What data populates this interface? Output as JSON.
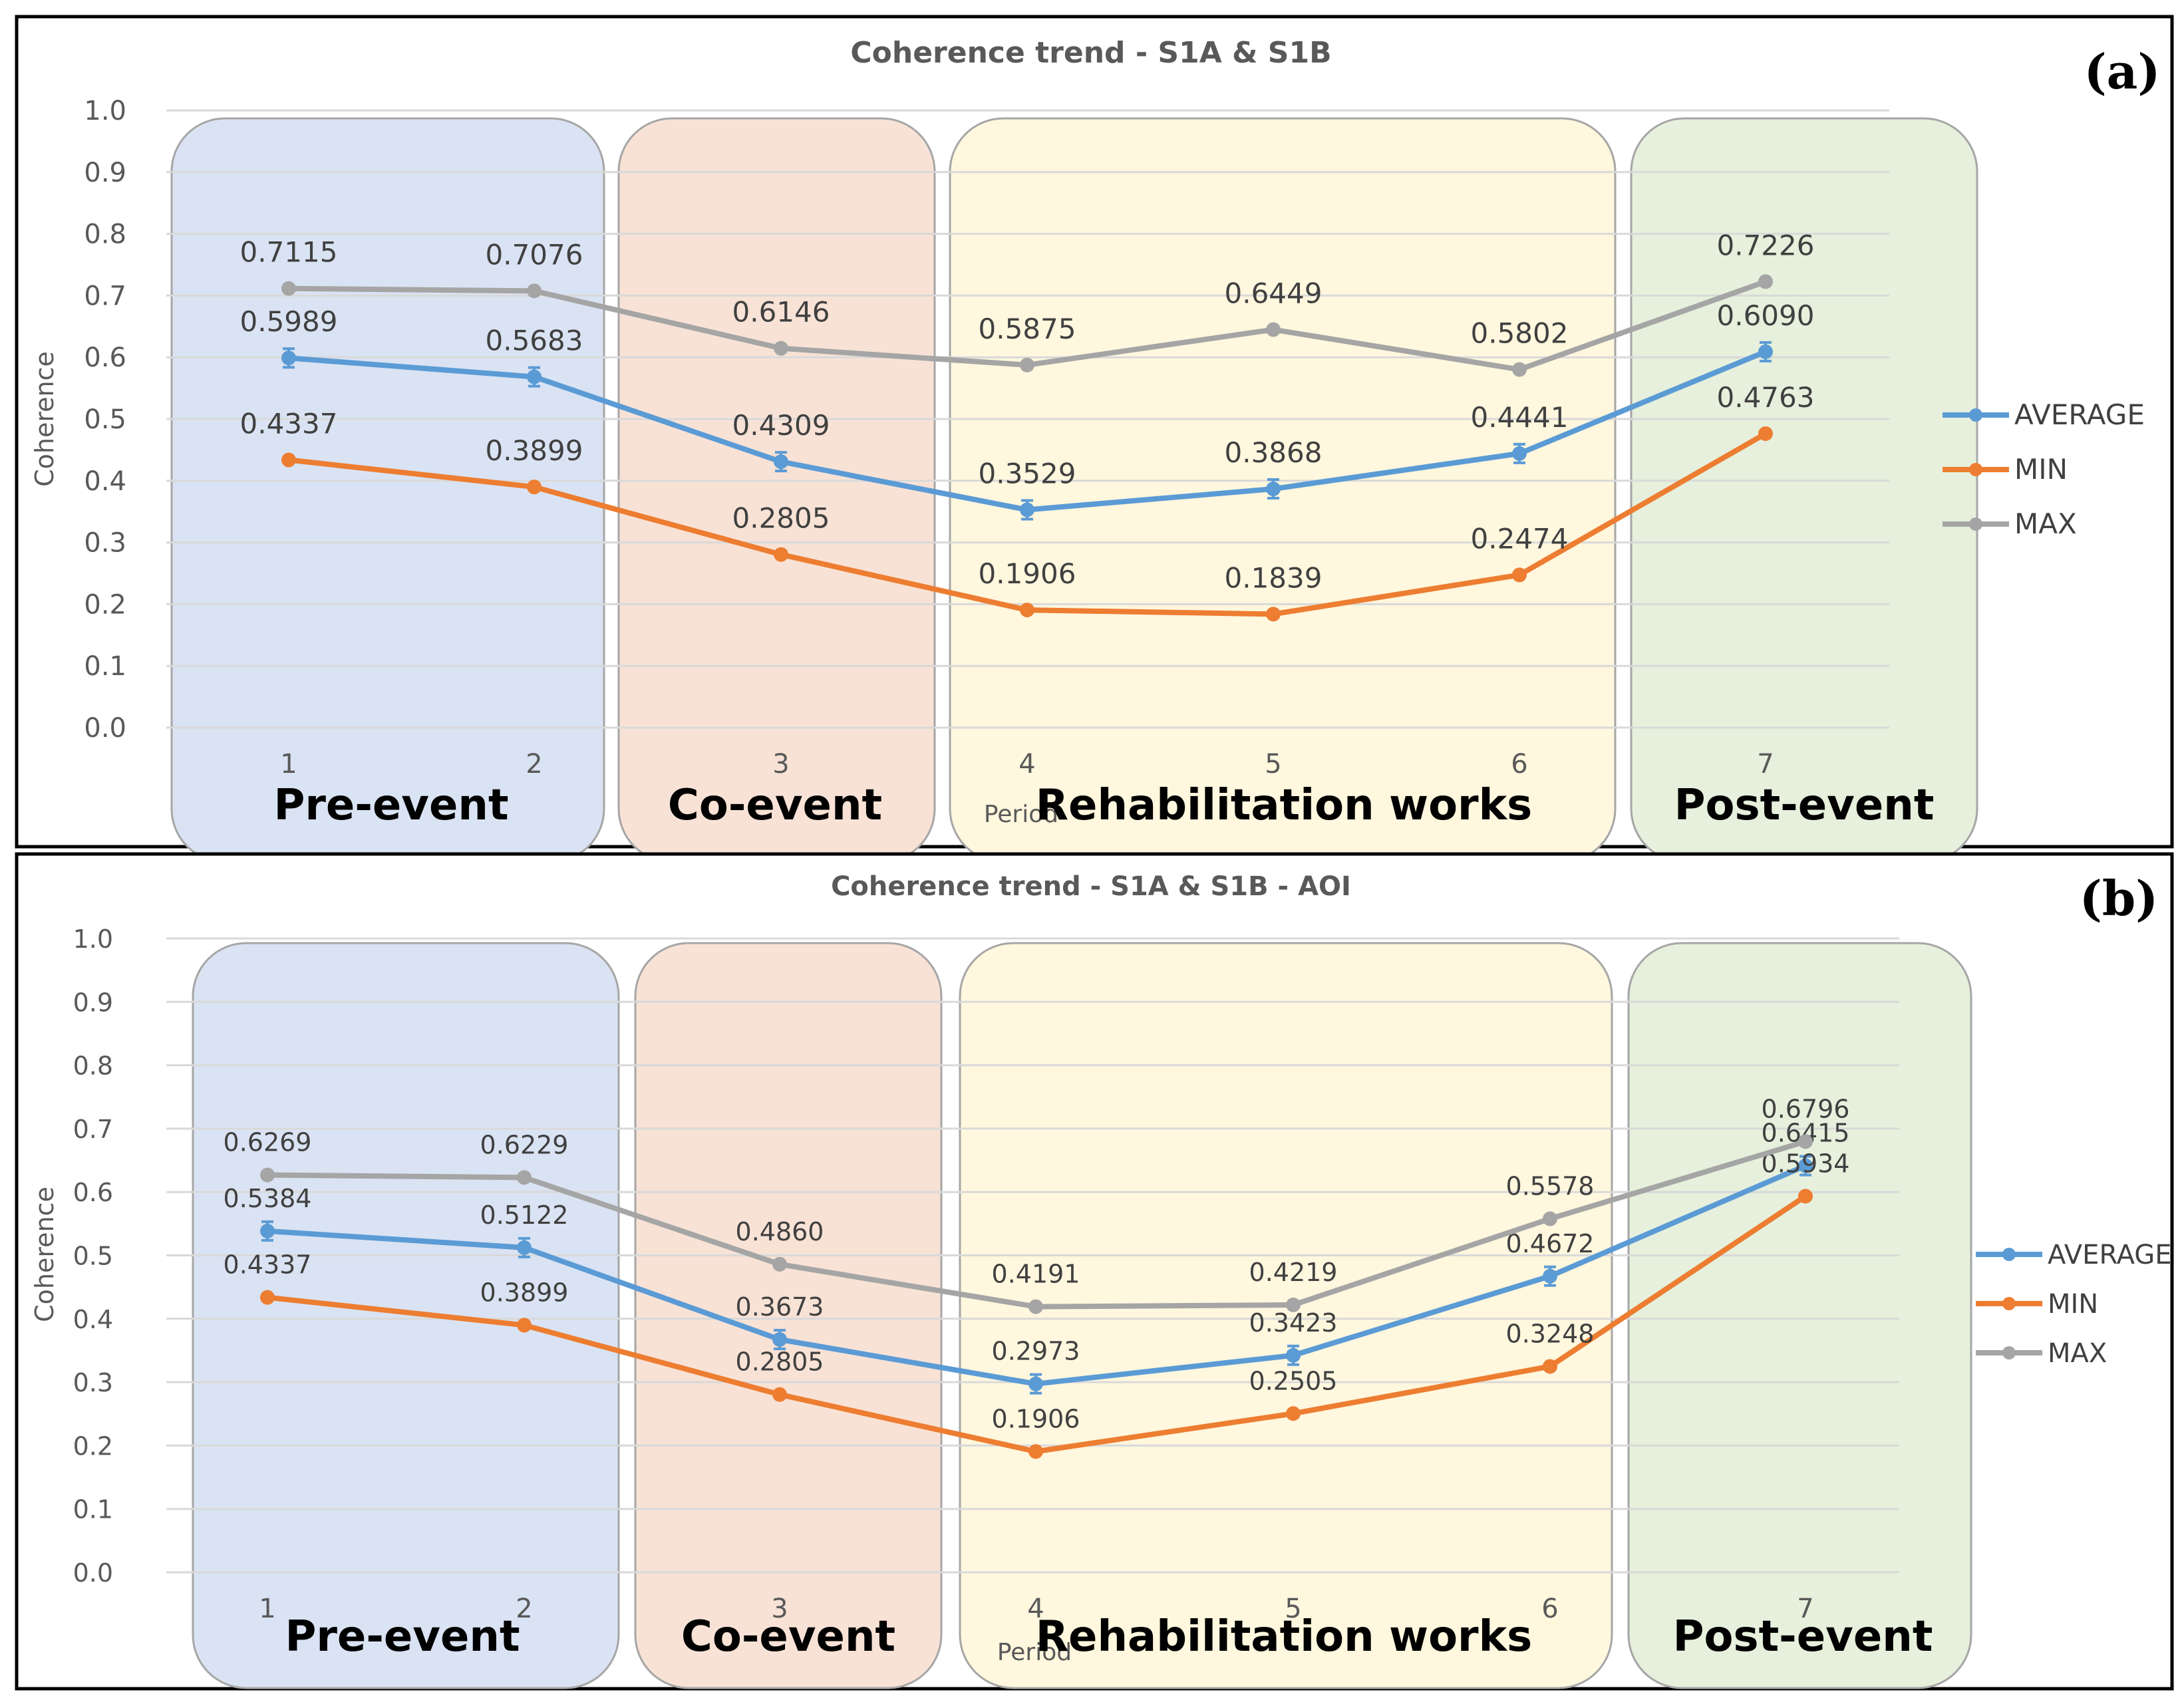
{
  "chart_data": [
    {
      "type": "line",
      "panel_label": "(a)",
      "title": "Coherence trend - S1A & S1B",
      "xlabel": "Period",
      "ylabel": "Coherence",
      "ylim": [
        0,
        1
      ],
      "yticks": [
        "0.0",
        "0.1",
        "0.2",
        "0.3",
        "0.4",
        "0.5",
        "0.6",
        "0.7",
        "0.8",
        "0.9",
        "1.0"
      ],
      "categories": [
        "1",
        "2",
        "3",
        "4",
        "5",
        "6",
        "7"
      ],
      "series": [
        {
          "name": "AVERAGE",
          "color": "#5B9BD5",
          "values": [
            0.5989,
            0.5683,
            0.4309,
            0.3529,
            0.3868,
            0.4441,
            0.609
          ],
          "labels": [
            "0.5989",
            "0.5683",
            "0.4309",
            "0.3529",
            "0.3868",
            "0.4441",
            "0.6090"
          ],
          "error_bars": true
        },
        {
          "name": "MIN",
          "color": "#ED7D31",
          "values": [
            0.4337,
            0.3899,
            0.2805,
            0.1906,
            0.1839,
            0.2474,
            0.4763
          ],
          "labels": [
            "0.4337",
            "0.3899",
            "0.2805",
            "0.1906",
            "0.1839",
            "0.2474",
            "0.4763"
          ]
        },
        {
          "name": "MAX",
          "color": "#A5A5A5",
          "values": [
            0.7115,
            0.7076,
            0.6146,
            0.5875,
            0.6449,
            0.5802,
            0.7226
          ],
          "labels": [
            "0.7115",
            "0.7076",
            "0.6146",
            "0.5875",
            "0.6449",
            "0.5802",
            "0.7226"
          ]
        }
      ],
      "periods": [
        {
          "name": "Pre-event",
          "color": "#DAE3F3",
          "from": 1,
          "to": 2
        },
        {
          "name": "Co-event",
          "color": "#F8E2D6",
          "from": 3,
          "to": 3
        },
        {
          "name": "Rehabilitation works",
          "color": "#FFF7DE",
          "from": 4,
          "to": 6
        },
        {
          "name": "Post-event",
          "color": "#E6F0DC",
          "from": 7,
          "to": 7
        }
      ],
      "legend": "right"
    },
    {
      "type": "line",
      "panel_label": "(b)",
      "title": "Coherence trend - S1A & S1B - AOI",
      "xlabel": "Period",
      "ylabel": "Coherence",
      "ylim": [
        0,
        1
      ],
      "yticks": [
        "0.0",
        "0.1",
        "0.2",
        "0.3",
        "0.4",
        "0.5",
        "0.6",
        "0.7",
        "0.8",
        "0.9",
        "1.0"
      ],
      "categories": [
        "1",
        "2",
        "3",
        "4",
        "5",
        "6",
        "7"
      ],
      "series": [
        {
          "name": "AVERAGE",
          "color": "#5B9BD5",
          "values": [
            0.5384,
            0.5122,
            0.3673,
            0.2973,
            0.3423,
            0.4672,
            0.6415
          ],
          "labels": [
            "0.5384",
            "0.5122",
            "0.3673",
            "0.2973",
            "0.3423",
            "0.4672",
            "0.6415"
          ],
          "error_bars": true
        },
        {
          "name": "MIN",
          "color": "#ED7D31",
          "values": [
            0.4337,
            0.3899,
            0.2805,
            0.1906,
            0.2505,
            0.3248,
            0.5934
          ],
          "labels": [
            "0.4337",
            "0.3899",
            "0.2805",
            "0.1906",
            "0.2505",
            "0.3248",
            "0.5934"
          ]
        },
        {
          "name": "MAX",
          "color": "#A5A5A5",
          "values": [
            0.6269,
            0.6229,
            0.486,
            0.4191,
            0.4219,
            0.5578,
            0.6796
          ],
          "labels": [
            "0.6269",
            "0.6229",
            "0.4860",
            "0.4191",
            "0.4219",
            "0.5578",
            "0.6796"
          ]
        }
      ],
      "periods": [
        {
          "name": "Pre-event",
          "color": "#DAE3F3",
          "from": 1,
          "to": 2
        },
        {
          "name": "Co-event",
          "color": "#F8E2D6",
          "from": 3,
          "to": 3
        },
        {
          "name": "Rehabilitation works",
          "color": "#FFF7DE",
          "from": 4,
          "to": 6
        },
        {
          "name": "Post-event",
          "color": "#E6F0DC",
          "from": 7,
          "to": 7
        }
      ],
      "legend": "right"
    }
  ]
}
